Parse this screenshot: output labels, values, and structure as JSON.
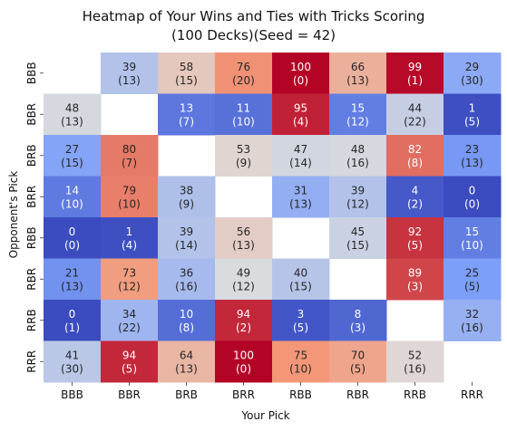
{
  "chart_data": {
    "type": "heatmap",
    "title_line1": "Heatmap of Your Wins and Ties with Tricks Scoring",
    "title_line2": "(100 Decks)(Seed = 42)",
    "xlabel": "Your Pick",
    "ylabel": "Opponent's Pick",
    "x_categories": [
      "BBB",
      "BBR",
      "BRB",
      "BRR",
      "RBB",
      "RBR",
      "RRB",
      "RRR"
    ],
    "y_categories": [
      "BBB",
      "BBR",
      "BRB",
      "BRR",
      "RBB",
      "RBR",
      "RRB",
      "RRR"
    ],
    "colormap": "coolwarm",
    "value_range": [
      0,
      100
    ],
    "legend": "none",
    "wins": [
      [
        null,
        39,
        58,
        76,
        100,
        66,
        99,
        29
      ],
      [
        48,
        null,
        13,
        11,
        95,
        15,
        44,
        1
      ],
      [
        27,
        80,
        null,
        53,
        47,
        48,
        82,
        23
      ],
      [
        14,
        79,
        38,
        null,
        31,
        39,
        4,
        0
      ],
      [
        0,
        1,
        39,
        56,
        null,
        45,
        92,
        15
      ],
      [
        21,
        73,
        36,
        49,
        40,
        null,
        89,
        25
      ],
      [
        0,
        34,
        10,
        94,
        3,
        8,
        null,
        32
      ],
      [
        41,
        94,
        64,
        100,
        75,
        70,
        52,
        null
      ]
    ],
    "ties": [
      [
        null,
        13,
        15,
        20,
        0,
        13,
        1,
        30
      ],
      [
        13,
        null,
        7,
        10,
        4,
        12,
        22,
        5
      ],
      [
        15,
        7,
        null,
        9,
        14,
        16,
        8,
        13
      ],
      [
        10,
        10,
        9,
        null,
        13,
        12,
        2,
        0
      ],
      [
        0,
        4,
        14,
        13,
        null,
        15,
        5,
        10
      ],
      [
        13,
        12,
        16,
        12,
        15,
        null,
        3,
        5
      ],
      [
        1,
        22,
        8,
        2,
        5,
        3,
        null,
        16
      ],
      [
        30,
        5,
        13,
        0,
        10,
        5,
        16,
        null
      ]
    ]
  }
}
